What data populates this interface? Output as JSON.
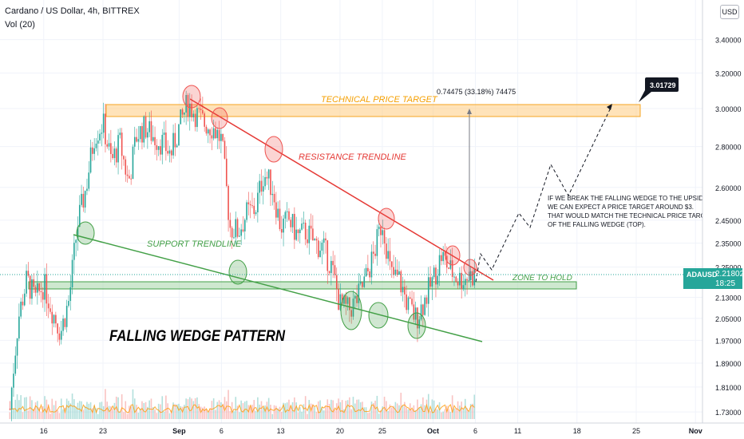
{
  "header": {
    "title": "Cardano / US Dollar, 4h, BITTREX",
    "volume": "Vol (20)"
  },
  "currency_button": "USD",
  "price_tag": {
    "symbol": "ADAUSD",
    "price": "2.21802",
    "countdown": "18:25"
  },
  "colors": {
    "up": "#26a69a",
    "down": "#ef5350",
    "resistance": "#e53935",
    "support": "#43a047",
    "target_zone": "#ffcc80",
    "target_text": "#f59f00",
    "hold_zone": "#a5d6a7"
  },
  "chart_data": {
    "type": "candlestick",
    "symbol": "ADAUSD",
    "interval": "4h",
    "exchange": "BITTREX",
    "y_scale": "log",
    "ylim": [
      1.7,
      4.15
    ],
    "y_ticks": [
      "3.40000",
      "3.20000",
      "3.00000",
      "2.80000",
      "2.60000",
      "2.45000",
      "2.35000",
      "2.25000",
      "2.13000",
      "2.05000",
      "1.97000",
      "1.89000",
      "1.81000",
      "1.73000"
    ],
    "x_ticks": [
      "16",
      "23",
      "Sep",
      "6",
      "13",
      "20",
      "25",
      "Oct",
      "6",
      "11",
      "18",
      "25",
      "Nov"
    ],
    "last_price": 2.21802,
    "annotations": {
      "pattern_title": "FALLING WEDGE PATTERN",
      "target_label": "TECHNICAL PRICE TARGET",
      "resistance_label": "RESISTANCE TRENDLINE",
      "support_label": "SUPPORT TRENDLINE",
      "zone_label": "ZONE TO HOLD",
      "measure_label": "0.74475 (33.18%) 74475",
      "target_callout": "3.01729",
      "note_lines": [
        "IF WE BREAK THE FALLING WEDGE TO THE UPSIDE,",
        "WE CAN EXPECT A PRICE TARGET AROUND $3.",
        "THAT WOULD MATCH THE TECHNICAL PRICE TARGET",
        "OF THE FALLING WEDGE (TOP)."
      ]
    },
    "target_zone": [
      2.96,
      3.03
    ],
    "hold_zone": [
      2.17,
      2.2
    ],
    "close_path": [
      [
        "Aug 12",
        1.74
      ],
      [
        "Aug 13",
        2.05
      ],
      [
        "Aug 14",
        2.2
      ],
      [
        "Aug 15",
        2.12
      ],
      [
        "Aug 16",
        2.18
      ],
      [
        "Aug 17",
        2.08
      ],
      [
        "Aug 18",
        2.0
      ],
      [
        "Aug 19",
        2.12
      ],
      [
        "Aug 20",
        2.43
      ],
      [
        "Aug 21",
        2.6
      ],
      [
        "Aug 22",
        2.86
      ],
      [
        "Aug 23",
        2.92
      ],
      [
        "Aug 24",
        2.72
      ],
      [
        "Aug 25",
        2.82
      ],
      [
        "Aug 26",
        2.62
      ],
      [
        "Aug 27",
        2.86
      ],
      [
        "Aug 28",
        2.9
      ],
      [
        "Aug 29",
        2.85
      ],
      [
        "Aug 30",
        2.82
      ],
      [
        "Aug 31",
        2.76
      ],
      [
        "Sep 1",
        2.9
      ],
      [
        "Sep 2",
        3.03
      ],
      [
        "Sep 3",
        2.97
      ],
      [
        "Sep 4",
        2.92
      ],
      [
        "Sep 5",
        2.9
      ],
      [
        "Sep 6",
        2.83
      ],
      [
        "Sep 7",
        2.42
      ],
      [
        "Sep 8",
        2.4
      ],
      [
        "Sep 9",
        2.48
      ],
      [
        "Sep 10",
        2.5
      ],
      [
        "Sep 11",
        2.67
      ],
      [
        "Sep 12",
        2.6
      ],
      [
        "Sep 13",
        2.42
      ],
      [
        "Sep 14",
        2.45
      ],
      [
        "Sep 15",
        2.38
      ],
      [
        "Sep 16",
        2.4
      ],
      [
        "Sep 17",
        2.35
      ],
      [
        "Sep 18",
        2.33
      ],
      [
        "Sep 19",
        2.25
      ],
      [
        "Sep 20",
        2.1
      ],
      [
        "Sep 21",
        2.08
      ],
      [
        "Sep 22",
        2.12
      ],
      [
        "Sep 23",
        2.2
      ],
      [
        "Sep 24",
        2.3
      ],
      [
        "Sep 25",
        2.45
      ],
      [
        "Sep 26",
        2.22
      ],
      [
        "Sep 27",
        2.2
      ],
      [
        "Sep 28",
        2.1
      ],
      [
        "Sep 29",
        2.05
      ],
      [
        "Sep 30",
        2.12
      ],
      [
        "Oct 1",
        2.2
      ],
      [
        "Oct 2",
        2.3
      ],
      [
        "Oct 3",
        2.24
      ],
      [
        "Oct 4",
        2.2
      ],
      [
        "Oct 5",
        2.21
      ],
      [
        "Oct 6",
        2.22
      ]
    ],
    "resistance_line": [
      [
        "Sep 2",
        3.03
      ],
      [
        "Oct 7",
        2.2
      ]
    ],
    "support_line": [
      [
        "Aug 16",
        2.4
      ],
      [
        "Oct 10",
        1.96
      ]
    ],
    "projection": [
      [
        "Oct 6",
        2.22
      ],
      [
        "Oct 7",
        2.31
      ],
      [
        "Oct 8",
        2.23
      ],
      [
        "Oct 11",
        2.47
      ],
      [
        "Oct 12",
        2.42
      ],
      [
        "Oct 14",
        2.69
      ],
      [
        "Oct 16",
        2.56
      ],
      [
        "Oct 25",
        3.01
      ]
    ]
  }
}
